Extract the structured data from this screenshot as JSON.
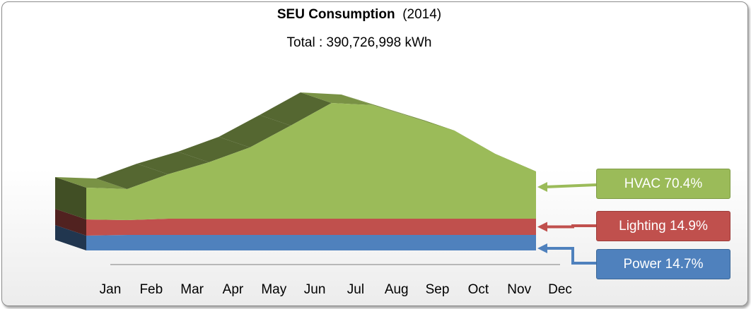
{
  "title": {
    "main": "SEU Consumption",
    "year": "(2014)",
    "total_label": "Total : 390,726,998 kWh"
  },
  "chart_data": {
    "type": "area",
    "stacked": true,
    "three_d": true,
    "title": "SEU Consumption (2014)",
    "subtitle": "Total : 390,726,998 kWh",
    "categories": [
      "Jan",
      "Feb",
      "Mar",
      "Apr",
      "May",
      "Jun",
      "Jul",
      "Aug",
      "Sep",
      "Oct",
      "Nov",
      "Dec"
    ],
    "series": [
      {
        "name": "Power",
        "share_label": "Power  14.7%",
        "color": "#4f81bd",
        "values": [
          21,
          22,
          22,
          22,
          22,
          22,
          22,
          22,
          22,
          22,
          22,
          22
        ]
      },
      {
        "name": "Lighting",
        "share_label": "Lighting  14.9%",
        "color": "#c0504d",
        "values": [
          23,
          21,
          23,
          23,
          23,
          23,
          23,
          23,
          23,
          23,
          23,
          23
        ]
      },
      {
        "name": "HVAC",
        "share_label": "HVAC 70.4%",
        "color": "#9bbb59",
        "values": [
          45,
          44,
          63,
          80,
          101,
          132,
          164,
          161,
          143,
          125,
          92,
          67
        ]
      }
    ],
    "legend_placement": "right",
    "yaxis_visible": false,
    "grid": false
  },
  "legend": [
    {
      "label": "HVAC 70.4%",
      "color": "#9bbb59"
    },
    {
      "label": "Lighting  14.9%",
      "color": "#c0504d"
    },
    {
      "label": "Power  14.7%",
      "color": "#4f81bd"
    }
  ]
}
